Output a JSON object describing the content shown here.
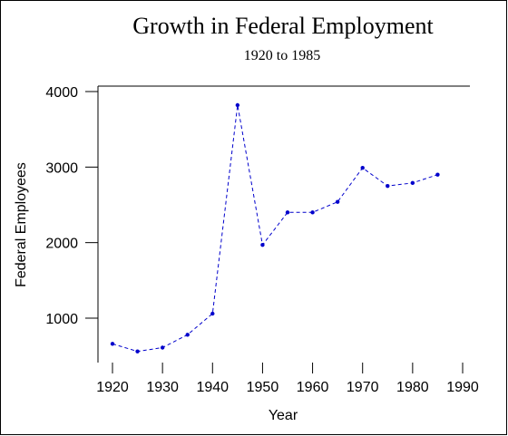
{
  "chart_data": {
    "type": "line",
    "title": "Growth in Federal Employment",
    "subtitle": "1920 to 1985",
    "xlabel": "Year",
    "ylabel": "Federal Employees",
    "x": [
      1920,
      1925,
      1930,
      1935,
      1940,
      1945,
      1950,
      1955,
      1960,
      1965,
      1970,
      1975,
      1980,
      1985
    ],
    "series": [
      {
        "values": [
          660,
          560,
          610,
          780,
          1060,
          3820,
          1970,
          2400,
          2400,
          2540,
          2990,
          2750,
          2790,
          2900
        ]
      }
    ],
    "xlim": [
      1920,
      1990
    ],
    "ylim": [
      1000,
      4000
    ],
    "xticks": [
      1920,
      1930,
      1940,
      1950,
      1960,
      1970,
      1980,
      1990
    ],
    "yticks": [
      1000,
      2000,
      3000,
      4000
    ],
    "line_color": "#0000cc",
    "line_style": "dashed",
    "grid": false,
    "legend": "none"
  }
}
